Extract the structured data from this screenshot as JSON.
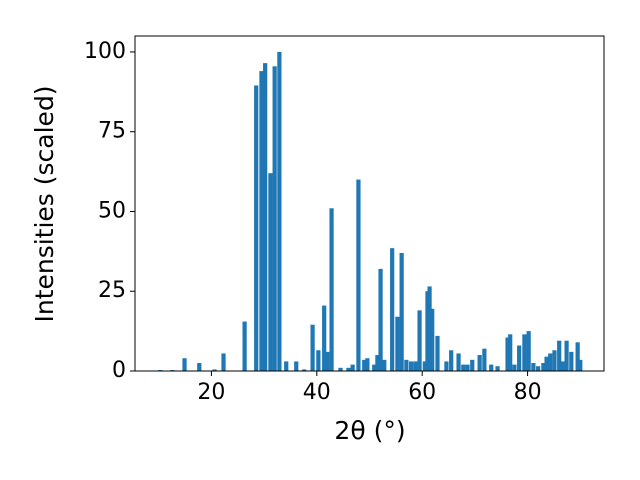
{
  "chart_data": {
    "type": "bar",
    "xlabel": "2θ (°)",
    "ylabel": "Intensities (scaled)",
    "x": [
      10.3,
      12.6,
      14.9,
      17.7,
      20.6,
      22.3,
      26.3,
      28.5,
      29.5,
      30.2,
      31.2,
      32.0,
      32.9,
      34.2,
      36.1,
      37.6,
      39.2,
      40.3,
      41.4,
      42.0,
      42.8,
      44.5,
      46.0,
      46.8,
      47.9,
      49.0,
      49.6,
      50.9,
      51.5,
      52.1,
      52.8,
      54.3,
      55.3,
      56.1,
      57.0,
      57.9,
      58.7,
      59.5,
      60.5,
      61.0,
      61.4,
      61.9,
      62.9,
      64.6,
      65.5,
      66.9,
      67.8,
      68.6,
      69.5,
      70.9,
      71.8,
      73.1,
      74.3,
      76.2,
      76.7,
      77.5,
      78.4,
      79.4,
      80.2,
      81.1,
      82.0,
      83.0,
      83.6,
      84.3,
      85.1,
      86.0,
      86.6,
      87.4,
      88.3,
      89.5,
      90.0
    ],
    "values": [
      0.3,
      0.3,
      4,
      2.5,
      0.5,
      5.5,
      15.5,
      89.5,
      94,
      96.5,
      62,
      95.5,
      100,
      3,
      3,
      0.5,
      14.5,
      6.5,
      20.5,
      6,
      51,
      1,
      1,
      2,
      60,
      3.5,
      4,
      2,
      5,
      32,
      3.5,
      38.5,
      17,
      37,
      3.5,
      3,
      3,
      19,
      3,
      25,
      26.5,
      19.5,
      11,
      3,
      6.5,
      5.5,
      2,
      2,
      3.5,
      5,
      7,
      2,
      1.5,
      10.5,
      11.5,
      2,
      8,
      11.5,
      12.5,
      2.5,
      1.5,
      2.5,
      4.5,
      5.5,
      6.5,
      9.5,
      3,
      9.5,
      6,
      9,
      3.5
    ],
    "color": "#1f77b4",
    "xlim": [
      5.5,
      94.5
    ],
    "xticks": [
      20,
      40,
      60,
      80
    ],
    "ylim": [
      0,
      105
    ],
    "yticks": [
      0,
      25,
      50,
      75,
      100
    ]
  }
}
